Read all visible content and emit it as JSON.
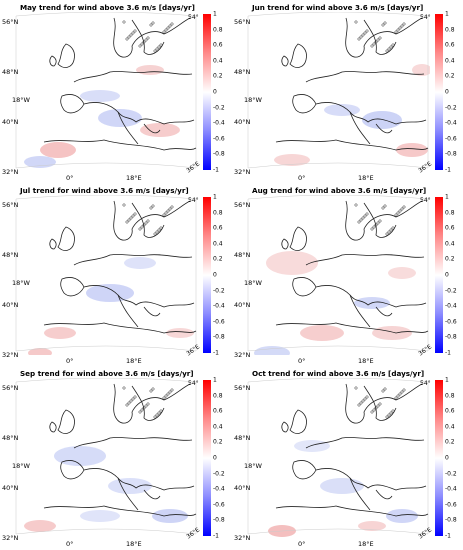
{
  "panels": [
    {
      "title": "May trend for wind above 3.6 m/s [days/yr]",
      "corner_right": "54°",
      "corner_bottom": "36°E"
    },
    {
      "title": "Jun trend for wind above 3.6 m/s [days/yr]",
      "corner_right": "54°",
      "corner_bottom": "36°E"
    },
    {
      "title": "Jul trend for wind above 3.6 m/s [days/yr]",
      "corner_right": "54°",
      "corner_bottom": "36°E"
    },
    {
      "title": "Aug trend for wind above 3.6 m/s [days/yr]",
      "corner_right": "54°",
      "corner_bottom": "36°E"
    },
    {
      "title": "Sep trend for wind above 3.6 m/s [days/yr]",
      "corner_right": "54°",
      "corner_bottom": "36°E"
    },
    {
      "title": "Oct trend for wind above 3.6 m/s [days/yr]",
      "corner_right": "54°",
      "corner_bottom": "36°E"
    }
  ],
  "lat_labels": [
    "56°N",
    "48°N",
    "40°N",
    "32°N"
  ],
  "side_lon_label": "18°W",
  "lon_labels": [
    "0°",
    "18°E"
  ],
  "colorbar": {
    "ticks": [
      "1",
      "0.8",
      "0.6",
      "0.4",
      "0.2",
      "0",
      "-0.2",
      "-0.4",
      "-0.6",
      "-0.8",
      "-1"
    ],
    "max": 1,
    "min": -1,
    "high_color": "#ff0000",
    "low_color": "#0000ff",
    "mid_color": "#ffffff"
  }
}
